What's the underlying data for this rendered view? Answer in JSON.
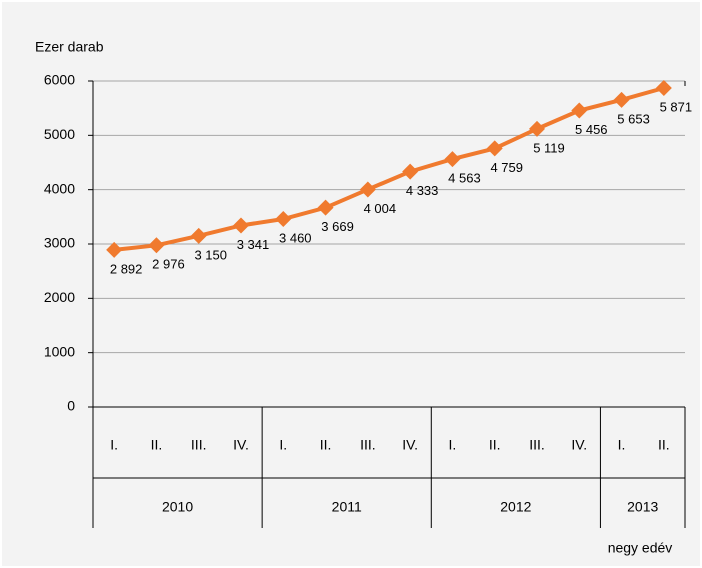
{
  "chart_data": {
    "type": "line",
    "y_label": "Ezer darab",
    "x_label": "negy edév",
    "groups": [
      {
        "label": "2010",
        "categories": [
          "I.",
          "II.",
          "III.",
          "IV."
        ]
      },
      {
        "label": "2011",
        "categories": [
          "I.",
          "II.",
          "III.",
          "IV."
        ]
      },
      {
        "label": "2012",
        "categories": [
          "I.",
          "II.",
          "III.",
          "IV."
        ]
      },
      {
        "label": "2013",
        "categories": [
          "I.",
          "II."
        ]
      }
    ],
    "series": [
      {
        "color": "#f07a2e",
        "values": [
          2892,
          2976,
          3150,
          3341,
          3460,
          3669,
          4004,
          4333,
          4563,
          4759,
          5119,
          5456,
          5653,
          5871
        ],
        "value_labels": [
          "2 892",
          "2 976",
          "3 150",
          "3 341",
          "3 460",
          "3 669",
          "4 004",
          "4 333",
          "4 563",
          "4 759",
          "5 119",
          "5 456",
          "5 653",
          "5 871"
        ]
      }
    ],
    "ylim": [
      0,
      6000
    ],
    "yticks": [
      0,
      1000,
      2000,
      3000,
      4000,
      5000,
      6000
    ],
    "grid": true
  }
}
